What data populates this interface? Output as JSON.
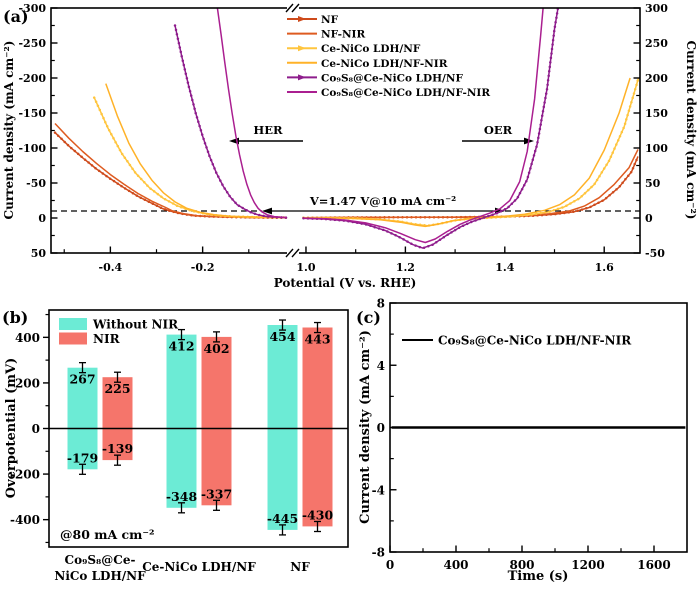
{
  "labels": {
    "a": "(a)",
    "b": "(b)",
    "c": "(c)"
  },
  "chart_data": [
    {
      "id": "a",
      "type": "line",
      "xlabel": "Potential (V vs. RHE)",
      "ylabel_left": "Current density (mA cm⁻²)",
      "ylabel_right": "Current density (mA cm⁻²)",
      "x_axis_break": [
        -0.015,
        0.992
      ],
      "x_ticks_left_segment": [
        -0.4,
        -0.2
      ],
      "x_minor_left_segment": [
        -0.5,
        -0.3,
        -0.1
      ],
      "x_ticks_right_segment": [
        1.0,
        1.2,
        1.4,
        1.6
      ],
      "x_minor_right_segment": [
        1.1,
        1.3,
        1.5
      ],
      "y_left_range_top_to_bottom": [
        -300,
        50
      ],
      "y_left_ticks": [
        -300,
        -250,
        -200,
        -150,
        -100,
        -50,
        0,
        50
      ],
      "y_right_range_top_to_bottom": [
        300,
        -50
      ],
      "y_right_ticks": [
        300,
        250,
        200,
        150,
        100,
        50,
        0,
        -50
      ],
      "dashed_reference_mA": 10,
      "annotations": {
        "voltage": "V=1.47 V@10 mA cm⁻²",
        "her": "HER",
        "oer": "OER"
      },
      "series": [
        {
          "name": "NF",
          "color": "#CE4A1B",
          "marker": true,
          "her": [
            [
              -0.52,
              -122
            ],
            [
              -0.49,
              -103
            ],
            [
              -0.46,
              -86
            ],
            [
              -0.43,
              -70
            ],
            [
              -0.4,
              -56
            ],
            [
              -0.37,
              -43
            ],
            [
              -0.34,
              -31
            ],
            [
              -0.31,
              -21
            ],
            [
              -0.285,
              -13
            ],
            [
              -0.27,
              -10
            ],
            [
              -0.25,
              -6.5
            ],
            [
              -0.22,
              -3.5
            ],
            [
              -0.18,
              -2
            ],
            [
              -0.12,
              -1
            ],
            [
              -0.05,
              -0.5
            ],
            [
              -0.018,
              -0.5
            ]
          ],
          "oer": [
            [
              0.995,
              0.5
            ],
            [
              1.1,
              0.8
            ],
            [
              1.2,
              1
            ],
            [
              1.3,
              1.2
            ],
            [
              1.4,
              2
            ],
            [
              1.45,
              3
            ],
            [
              1.5,
              5.5
            ],
            [
              1.54,
              9
            ],
            [
              1.57,
              15
            ],
            [
              1.6,
              26
            ],
            [
              1.63,
              44
            ],
            [
              1.655,
              66
            ],
            [
              1.668,
              88
            ]
          ]
        },
        {
          "name": "NF-NIR",
          "color": "#DE5B20",
          "marker": false,
          "her": [
            [
              -0.52,
              -135
            ],
            [
              -0.49,
              -114
            ],
            [
              -0.46,
              -95
            ],
            [
              -0.43,
              -78
            ],
            [
              -0.4,
              -62
            ],
            [
              -0.37,
              -48
            ],
            [
              -0.34,
              -35
            ],
            [
              -0.31,
              -24
            ],
            [
              -0.28,
              -15
            ],
            [
              -0.265,
              -10
            ],
            [
              -0.24,
              -6
            ],
            [
              -0.21,
              -3
            ],
            [
              -0.16,
              -1.5
            ],
            [
              -0.08,
              -0.5
            ],
            [
              -0.018,
              -0.5
            ]
          ],
          "oer": [
            [
              0.995,
              0.5
            ],
            [
              1.1,
              0.8
            ],
            [
              1.2,
              1
            ],
            [
              1.3,
              1.3
            ],
            [
              1.4,
              2.2
            ],
            [
              1.45,
              3.5
            ],
            [
              1.49,
              6
            ],
            [
              1.53,
              10
            ],
            [
              1.56,
              17
            ],
            [
              1.59,
              29
            ],
            [
              1.62,
              48
            ],
            [
              1.65,
              72
            ],
            [
              1.668,
              98
            ]
          ]
        },
        {
          "name": "Ce-NiCo LDH/NF",
          "color": "#FFC53E",
          "marker": true,
          "her": [
            [
              -0.435,
              -172
            ],
            [
              -0.405,
              -128
            ],
            [
              -0.375,
              -92
            ],
            [
              -0.345,
              -64
            ],
            [
              -0.315,
              -43
            ],
            [
              -0.285,
              -28
            ],
            [
              -0.255,
              -17.5
            ],
            [
              -0.225,
              -10.5
            ],
            [
              -0.195,
              -6
            ],
            [
              -0.165,
              -3.5
            ],
            [
              -0.13,
              -2
            ],
            [
              -0.07,
              -1
            ],
            [
              -0.018,
              -0.8
            ]
          ],
          "oer": [
            [
              0.995,
              0.3
            ],
            [
              1.05,
              0.2
            ],
            [
              1.1,
              -0.5
            ],
            [
              1.15,
              -2
            ],
            [
              1.19,
              -5
            ],
            [
              1.22,
              -9
            ],
            [
              1.245,
              -11
            ],
            [
              1.27,
              -8
            ],
            [
              1.3,
              -3.5
            ],
            [
              1.33,
              -1
            ],
            [
              1.37,
              0.5
            ],
            [
              1.41,
              2
            ],
            [
              1.45,
              4.5
            ],
            [
              1.49,
              9
            ],
            [
              1.52,
              16
            ],
            [
              1.55,
              28
            ],
            [
              1.58,
              48
            ],
            [
              1.61,
              82
            ],
            [
              1.64,
              130
            ],
            [
              1.66,
              178
            ],
            [
              1.669,
              200
            ]
          ]
        },
        {
          "name": "Ce-NiCo LDH/NF-NIR",
          "color": "#FFB228",
          "marker": false,
          "her": [
            [
              -0.41,
              -192
            ],
            [
              -0.385,
              -146
            ],
            [
              -0.36,
              -107
            ],
            [
              -0.335,
              -77
            ],
            [
              -0.31,
              -54
            ],
            [
              -0.285,
              -36
            ],
            [
              -0.26,
              -23
            ],
            [
              -0.235,
              -14
            ],
            [
              -0.205,
              -8
            ],
            [
              -0.175,
              -4.5
            ],
            [
              -0.14,
              -2.5
            ],
            [
              -0.07,
              -1.2
            ],
            [
              -0.018,
              -1
            ]
          ],
          "oer": [
            [
              0.995,
              0.3
            ],
            [
              1.05,
              0.1
            ],
            [
              1.1,
              -0.8
            ],
            [
              1.15,
              -2.5
            ],
            [
              1.19,
              -6
            ],
            [
              1.22,
              -10
            ],
            [
              1.24,
              -12
            ],
            [
              1.265,
              -9
            ],
            [
              1.295,
              -4
            ],
            [
              1.325,
              -1
            ],
            [
              1.36,
              0.8
            ],
            [
              1.4,
              2.5
            ],
            [
              1.44,
              5.5
            ],
            [
              1.48,
              11
            ],
            [
              1.51,
              19
            ],
            [
              1.54,
              33
            ],
            [
              1.57,
              57
            ],
            [
              1.6,
              97
            ],
            [
              1.63,
              150
            ],
            [
              1.652,
              200
            ]
          ]
        },
        {
          "name": "Co₉S₈@Ce-NiCo LDH/NF",
          "color": "#8E1D8C",
          "marker": true,
          "her": [
            [
              -0.26,
              -275
            ],
            [
              -0.245,
              -230
            ],
            [
              -0.23,
              -188
            ],
            [
              -0.215,
              -150
            ],
            [
              -0.2,
              -117
            ],
            [
              -0.185,
              -88
            ],
            [
              -0.17,
              -64
            ],
            [
              -0.155,
              -45
            ],
            [
              -0.14,
              -30
            ],
            [
              -0.125,
              -19
            ],
            [
              -0.11,
              -13
            ],
            [
              -0.095,
              -8
            ],
            [
              -0.08,
              -4.5
            ],
            [
              -0.06,
              -2
            ],
            [
              -0.03,
              -0.8
            ],
            [
              -0.018,
              -0.6
            ]
          ],
          "oer": [
            [
              0.995,
              -0.3
            ],
            [
              1.04,
              -1.5
            ],
            [
              1.08,
              -4
            ],
            [
              1.12,
              -9
            ],
            [
              1.16,
              -18
            ],
            [
              1.19,
              -28
            ],
            [
              1.215,
              -38
            ],
            [
              1.235,
              -43
            ],
            [
              1.255,
              -38
            ],
            [
              1.28,
              -26
            ],
            [
              1.31,
              -13
            ],
            [
              1.335,
              -5
            ],
            [
              1.36,
              1
            ],
            [
              1.385,
              7
            ],
            [
              1.405,
              14
            ],
            [
              1.425,
              28
            ],
            [
              1.445,
              55
            ],
            [
              1.465,
              105
            ],
            [
              1.485,
              185
            ],
            [
              1.5,
              270
            ],
            [
              1.507,
              300
            ]
          ]
        },
        {
          "name": "Co₉S₈@Ce-NiCo LDH/NF-NIR",
          "color": "#AA1F90",
          "marker": false,
          "her": [
            [
              -0.168,
              -300
            ],
            [
              -0.16,
              -262
            ],
            [
              -0.152,
              -222
            ],
            [
              -0.144,
              -184
            ],
            [
              -0.136,
              -149
            ],
            [
              -0.128,
              -117
            ],
            [
              -0.12,
              -90
            ],
            [
              -0.112,
              -67
            ],
            [
              -0.104,
              -48
            ],
            [
              -0.096,
              -33
            ],
            [
              -0.088,
              -22
            ],
            [
              -0.08,
              -14
            ],
            [
              -0.072,
              -9
            ],
            [
              -0.06,
              -4.5
            ],
            [
              -0.045,
              -2
            ],
            [
              -0.018,
              -0.6
            ]
          ],
          "oer": [
            [
              0.995,
              -0.3
            ],
            [
              1.04,
              -1
            ],
            [
              1.08,
              -3
            ],
            [
              1.12,
              -7
            ],
            [
              1.16,
              -14
            ],
            [
              1.19,
              -22
            ],
            [
              1.22,
              -31
            ],
            [
              1.24,
              -35
            ],
            [
              1.26,
              -30
            ],
            [
              1.285,
              -19
            ],
            [
              1.31,
              -9
            ],
            [
              1.33,
              -3
            ],
            [
              1.35,
              2
            ],
            [
              1.37,
              7
            ],
            [
              1.39,
              13
            ],
            [
              1.41,
              25
            ],
            [
              1.43,
              52
            ],
            [
              1.445,
              95
            ],
            [
              1.46,
              170
            ],
            [
              1.472,
              260
            ],
            [
              1.477,
              300
            ]
          ]
        }
      ]
    },
    {
      "id": "b",
      "type": "bar",
      "ylabel": "Overpotential (mV)",
      "ylim": [
        -520,
        520
      ],
      "yticks": [
        -400,
        -200,
        0,
        200,
        400
      ],
      "yminor": [
        -500,
        -300,
        -100,
        100,
        300,
        500
      ],
      "categories": [
        [
          "Co₉S₈@Ce-",
          "NiCo LDH/NF"
        ],
        [
          "Ce-NiCo LDH/NF"
        ],
        [
          "NF"
        ]
      ],
      "annotation": "@80 mA cm⁻²",
      "error_mV": 22,
      "series": [
        {
          "name": "Without NIR",
          "color": "#6CEBD5",
          "oer": [
            267,
            412,
            454
          ],
          "her": [
            -179,
            -348,
            -445
          ]
        },
        {
          "name": "NIR",
          "color": "#F5756B",
          "oer": [
            225,
            402,
            443
          ],
          "her": [
            -139,
            -337,
            -430
          ]
        }
      ]
    },
    {
      "id": "c",
      "type": "line",
      "xlabel": "Time (s)",
      "ylabel": "Current density (mA cm⁻²)",
      "xlim": [
        0,
        1800
      ],
      "xticks": [
        0,
        400,
        800,
        1200,
        1600
      ],
      "xminor": [
        200,
        600,
        1000,
        1400
      ],
      "ylim": [
        -8,
        8
      ],
      "yticks": [
        -8,
        -4,
        0,
        4,
        8
      ],
      "yminor": [
        -6,
        -2,
        2,
        6
      ],
      "series": [
        {
          "name": "Co₉S₈@Ce-NiCo LDH/NF-NIR",
          "color": "#000000",
          "points": [
            [
              10,
              0
            ],
            [
              1790,
              0
            ]
          ]
        }
      ]
    }
  ]
}
